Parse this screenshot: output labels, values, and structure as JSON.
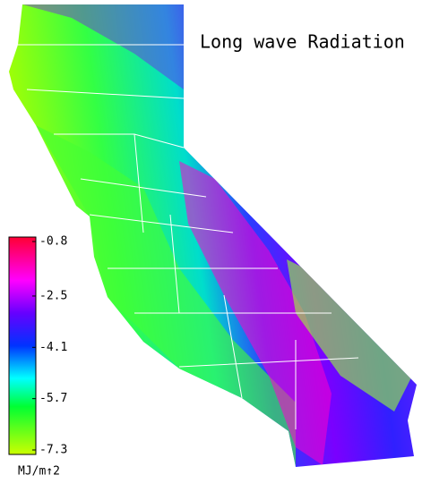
{
  "title": "Long wave Radiation",
  "colorbar": {
    "lim": [
      -7.3,
      -0.8
    ],
    "ticks": [
      -0.8,
      -2.5,
      -4.1,
      -5.7,
      -7.3
    ],
    "unit": "MJ/m↑2"
  }
}
